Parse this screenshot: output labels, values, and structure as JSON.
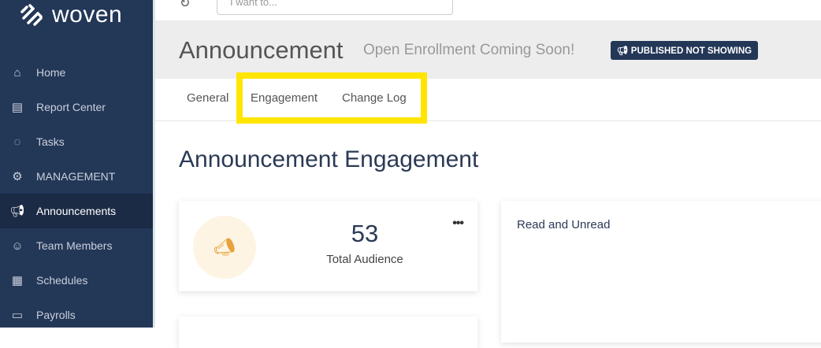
{
  "app": {
    "logo": "woven"
  },
  "search": {
    "placeholder": "I want to..."
  },
  "sidebar": {
    "items": [
      {
        "label": "Home",
        "icon": "home-icon"
      },
      {
        "label": "Report Center",
        "icon": "report-icon"
      },
      {
        "label": "Tasks",
        "icon": "check-circle-icon"
      },
      {
        "label": "MANAGEMENT",
        "icon": "gears-icon"
      },
      {
        "label": "Announcements",
        "icon": "megaphone-icon",
        "active": true
      },
      {
        "label": "Team Members",
        "icon": "team-icon"
      },
      {
        "label": "Schedules",
        "icon": "calendar-icon"
      },
      {
        "label": "Payrolls",
        "icon": "payroll-icon"
      }
    ]
  },
  "header": {
    "title": "Announcement",
    "subtitle": "Open Enrollment Coming Soon!",
    "badge": "PUBLISHED NOT SHOWING"
  },
  "tabs": [
    {
      "label": "General"
    },
    {
      "label": "Engagement",
      "active": true
    },
    {
      "label": "Change Log"
    }
  ],
  "main": {
    "title": "Announcement Engagement",
    "stat": {
      "value": "53",
      "label": "Total Audience",
      "more": "•••"
    },
    "chart_card": {
      "title": "Read and Unread"
    }
  },
  "colors": {
    "sidebar": "#233757",
    "highlight": "#ffe500",
    "accent": "#e6a23c"
  }
}
